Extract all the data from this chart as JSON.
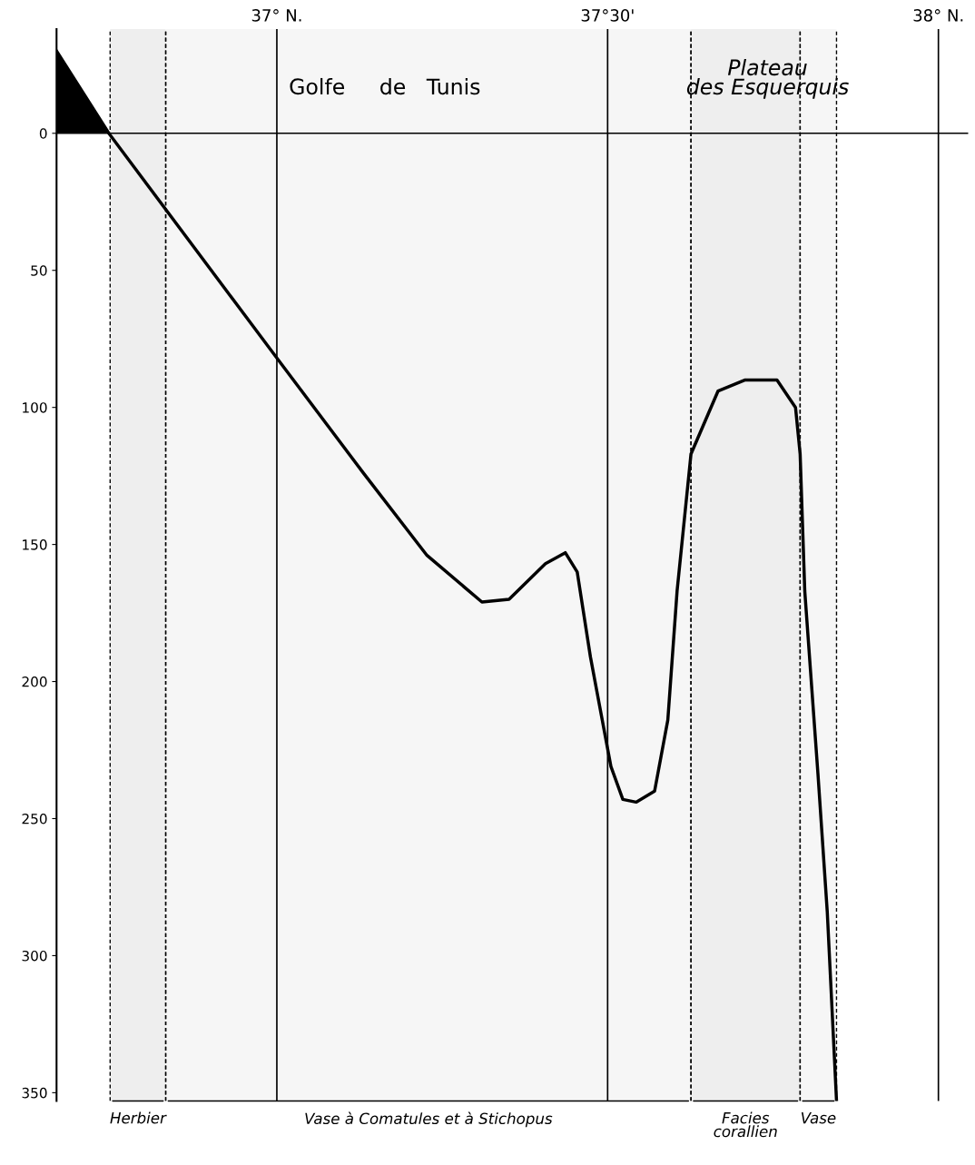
{
  "chart_data": {
    "type": "line",
    "xlim": [
      36.667,
      38.045
    ],
    "ylim": [
      353,
      -38
    ],
    "xticks": [
      {
        "value": 37.0,
        "label": "37° N."
      },
      {
        "value": 37.5,
        "label": "37°30'"
      },
      {
        "value": 38.0,
        "label": "38° N."
      }
    ],
    "yticks": [
      0,
      50,
      100,
      150,
      200,
      250,
      300,
      350
    ],
    "grid": "x",
    "series": [
      {
        "type": "area",
        "color": "#000000",
        "x": [
          36.667,
          36.746
        ],
        "values": [
          -30,
          0
        ]
      },
      {
        "color": "#000000",
        "x": [
          36.667,
          36.746,
          37.0,
          37.131,
          37.227,
          37.31,
          37.351,
          37.406,
          37.436,
          37.454,
          37.474,
          37.505,
          37.523,
          37.543,
          37.571,
          37.591,
          37.605,
          37.626,
          37.667,
          37.708,
          37.756,
          37.784,
          37.791,
          37.798,
          37.818,
          37.832,
          37.846
        ],
        "values": [
          -30,
          0,
          82,
          124,
          154,
          171,
          170,
          157,
          153,
          160,
          191,
          231,
          243,
          244,
          240,
          214,
          167,
          117,
          94,
          90,
          90,
          100,
          117,
          167,
          234,
          284,
          353
        ]
      }
    ],
    "ref_lines": [
      {
        "axis": "y",
        "value": 0,
        "color": "#000000"
      }
    ],
    "bands": [
      {
        "axis": "x",
        "from": 36.748,
        "to": 36.832,
        "label": "Herbier",
        "color": "#eeeeee"
      },
      {
        "axis": "x",
        "from": 36.832,
        "to": 37.626,
        "label": "Vase à Comatules et à Stichopus",
        "color": "#f6f6f6"
      },
      {
        "axis": "x",
        "from": 37.626,
        "to": 37.791,
        "label": "Facies\ncorallien",
        "color": "#eeeeee"
      },
      {
        "axis": "x",
        "from": 37.791,
        "to": 37.846,
        "label": "Vase",
        "color": "#f6f6f6"
      }
    ],
    "annotations": [
      "Golfe     de   Tunis",
      "Plateau\ndes Esquerquis"
    ]
  }
}
